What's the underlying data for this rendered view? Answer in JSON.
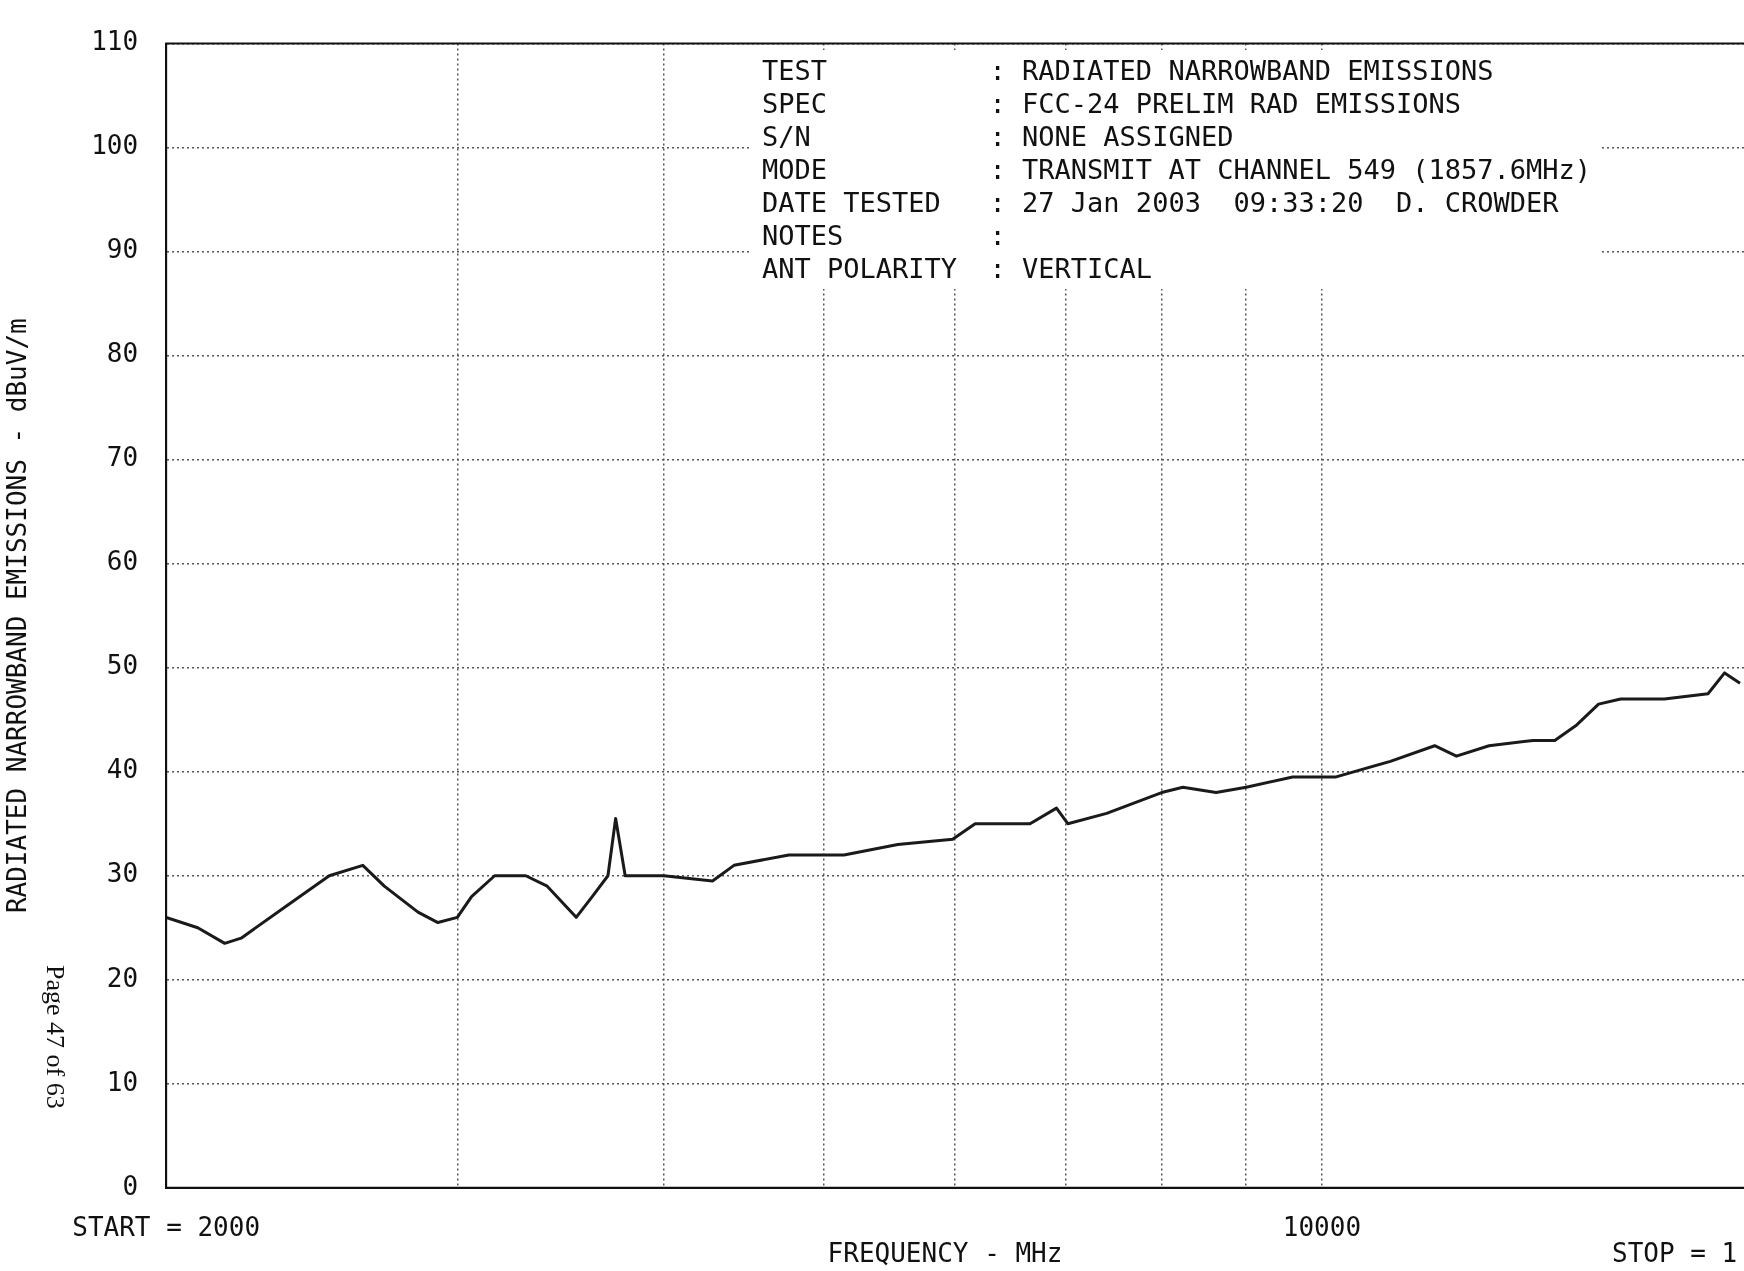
{
  "chart_data": {
    "type": "line",
    "xlabel": "FREQUENCY - MHz",
    "ylabel": "RADIATED NARROWBAND EMISSIONS - dBuV/m",
    "annotations": [
      "TEST          : RADIATED NARROWBAND EMISSIONS",
      "SPEC          : FCC-24 PRELIM RAD EMISSIONS",
      "S/N           : NONE ASSIGNED",
      "MODE          : TRANSMIT AT CHANNEL 549 (1857.6MHz)",
      "DATE TESTED   : 27 Jan 2003  09:33:20  D. CROWDER",
      "NOTES         :",
      "ANT POLARITY  : VERTICAL",
      "STOP = 1",
      "Page 47 of 63"
    ],
    "x": [
      2000,
      2090,
      2170,
      2220,
      2360,
      2510,
      2630,
      2710,
      2840,
      2920,
      3000,
      3060,
      3160,
      3300,
      3400,
      3540,
      3620,
      3700,
      3740,
      3790,
      4000,
      4280,
      4410,
      4760,
      5140,
      5540,
      5980,
      6170,
      6660,
      6910,
      7020,
      7410,
      8000,
      8240,
      8630,
      9000,
      9600,
      10000,
      10200,
      11000,
      11700,
      12060,
      12620,
      13420,
      13830,
      14260,
      14700,
      15160,
      16110,
      17120,
      17520,
      17900
    ],
    "values": [
      26,
      25,
      23.5,
      24,
      27,
      30,
      31,
      29,
      26.5,
      25.5,
      26,
      28,
      30,
      30,
      29,
      26,
      28,
      30,
      35.5,
      30,
      30,
      29.5,
      31,
      32,
      32,
      33,
      33.5,
      35,
      35,
      36.5,
      35,
      36,
      38,
      38.5,
      38,
      38.5,
      39.5,
      39.5,
      39.5,
      41,
      42.5,
      41.5,
      42.5,
      43,
      43,
      44.5,
      46.5,
      47,
      47,
      47.5,
      49.5,
      48.5
    ],
    "color": "#1a1a1a",
    "line_style": "solid",
    "marker": "none",
    "xlim": [
      2000,
      18000
    ],
    "xticks": [
      {
        "value": 2000,
        "label": "START = 2000"
      },
      {
        "value": 3000,
        "label": null
      },
      {
        "value": 4000,
        "label": null
      },
      {
        "value": 5000,
        "label": null
      },
      {
        "value": 6000,
        "label": null
      },
      {
        "value": 7000,
        "label": null
      },
      {
        "value": 8000,
        "label": null
      },
      {
        "value": 9000,
        "label": null
      },
      10000
    ],
    "ylim": [
      0,
      110
    ],
    "yticks": [
      0,
      10,
      20,
      30,
      40,
      50,
      60,
      70,
      80,
      90,
      100,
      110
    ],
    "log": "x",
    "grid": true
  }
}
